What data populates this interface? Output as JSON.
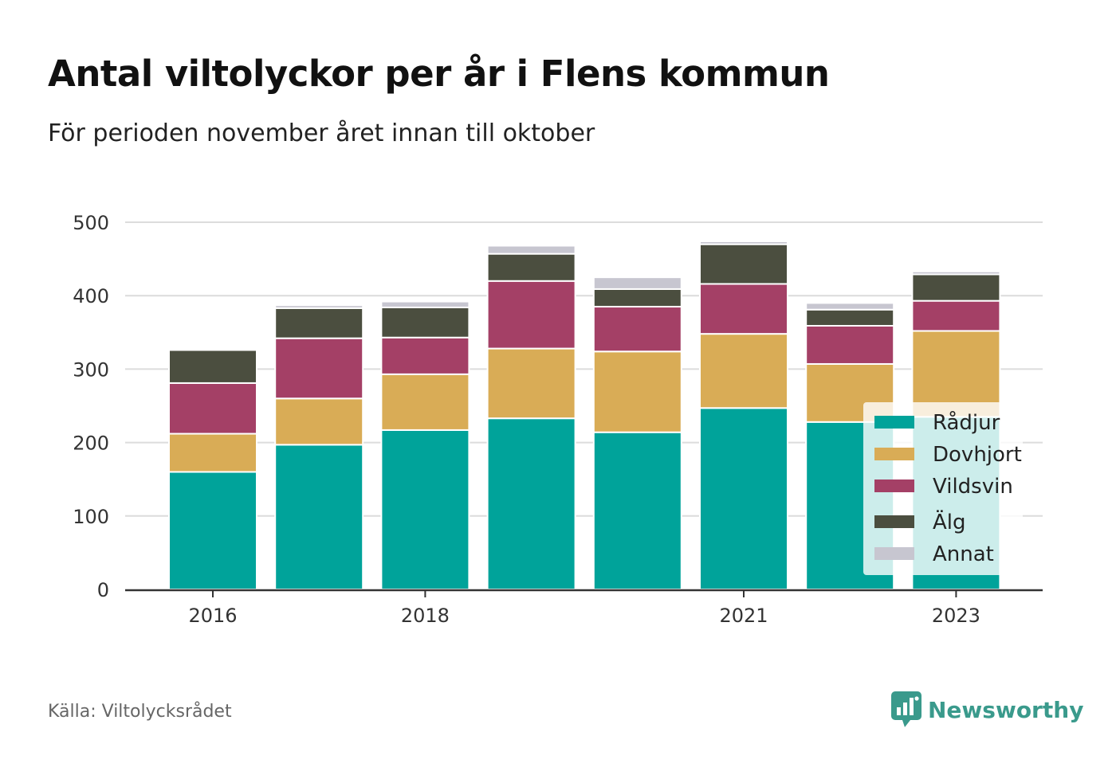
{
  "header": {
    "title": "Antal viltolyckor per år i Flens kommun",
    "subtitle": "För perioden november året innan till oktober"
  },
  "footer": {
    "source": "Källa: Viltolycksrådet",
    "brand": "Newsworthy",
    "brand_icon": "bar-chart-speech-bubble-icon"
  },
  "colors": {
    "Rådjur": "#00a39a",
    "Dovhjort": "#d9ac56",
    "Vildsvin": "#a44066",
    "Älg": "#4b4e3f",
    "Annat": "#c7c6d0"
  },
  "chart_data": {
    "type": "bar",
    "stacked": true,
    "categories": [
      "2016",
      "2017",
      "2018",
      "2019",
      "2020",
      "2021",
      "2022",
      "2023"
    ],
    "x_tick_labels": [
      "2016",
      "2018",
      "2021",
      "2023"
    ],
    "series": [
      {
        "name": "Rådjur",
        "values": [
          160,
          197,
          217,
          233,
          214,
          247,
          228,
          235
        ]
      },
      {
        "name": "Dovhjort",
        "values": [
          52,
          63,
          76,
          95,
          110,
          101,
          79,
          117
        ]
      },
      {
        "name": "Vildsvin",
        "values": [
          69,
          82,
          50,
          92,
          61,
          68,
          52,
          41
        ]
      },
      {
        "name": "Älg",
        "values": [
          45,
          41,
          41,
          37,
          24,
          54,
          22,
          36
        ]
      },
      {
        "name": "Annat",
        "values": [
          1,
          4,
          8,
          11,
          16,
          4,
          9,
          4
        ]
      }
    ],
    "ylim": [
      0,
      500
    ],
    "yticks": [
      0,
      100,
      200,
      300,
      400,
      500
    ],
    "grid": true,
    "legend": "bottom-right, overlapping plot"
  }
}
